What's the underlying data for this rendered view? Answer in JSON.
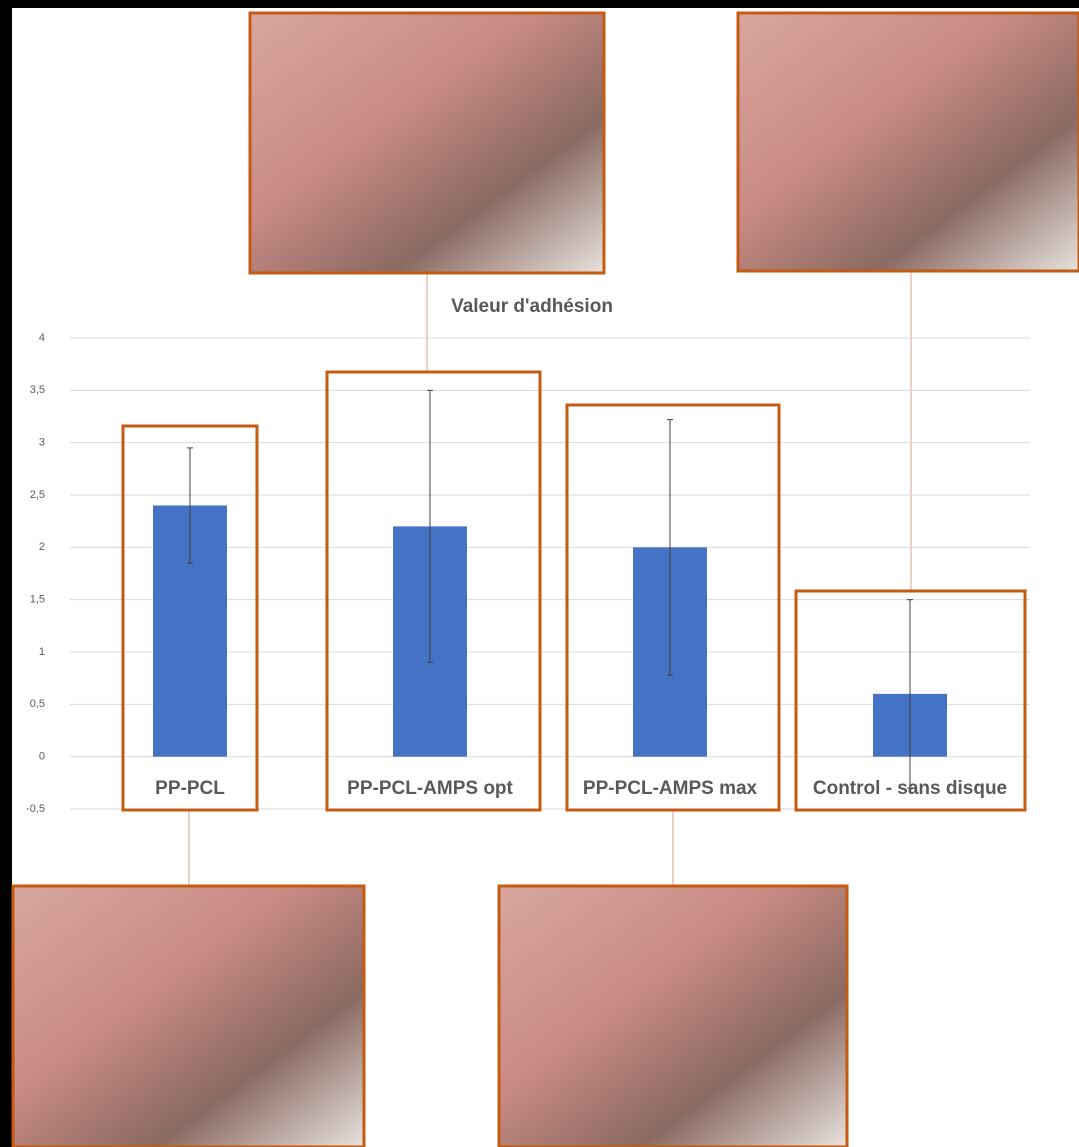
{
  "chart_data": {
    "type": "bar",
    "title": "Valeur d'adhésion",
    "categories": [
      "PP-PCL",
      "PP-PCL-AMPS opt",
      "PP-PCL-AMPS max",
      "Control - sans disque"
    ],
    "values": [
      2.4,
      2.2,
      2.0,
      0.6
    ],
    "errors": [
      0.55,
      1.3,
      1.22,
      0.9
    ],
    "color": "#4472c4",
    "ylim": [
      -0.5,
      4
    ],
    "yticks": [
      {
        "value": -0.5,
        "label": "-0,5"
      },
      0,
      {
        "value": 0.5,
        "label": "0,5"
      },
      1,
      {
        "value": 1.5,
        "label": "1,5"
      },
      2,
      {
        "value": 2.5,
        "label": "2,5"
      },
      3,
      {
        "value": 3.5,
        "label": "3,5"
      },
      4
    ],
    "grid": true
  }
}
